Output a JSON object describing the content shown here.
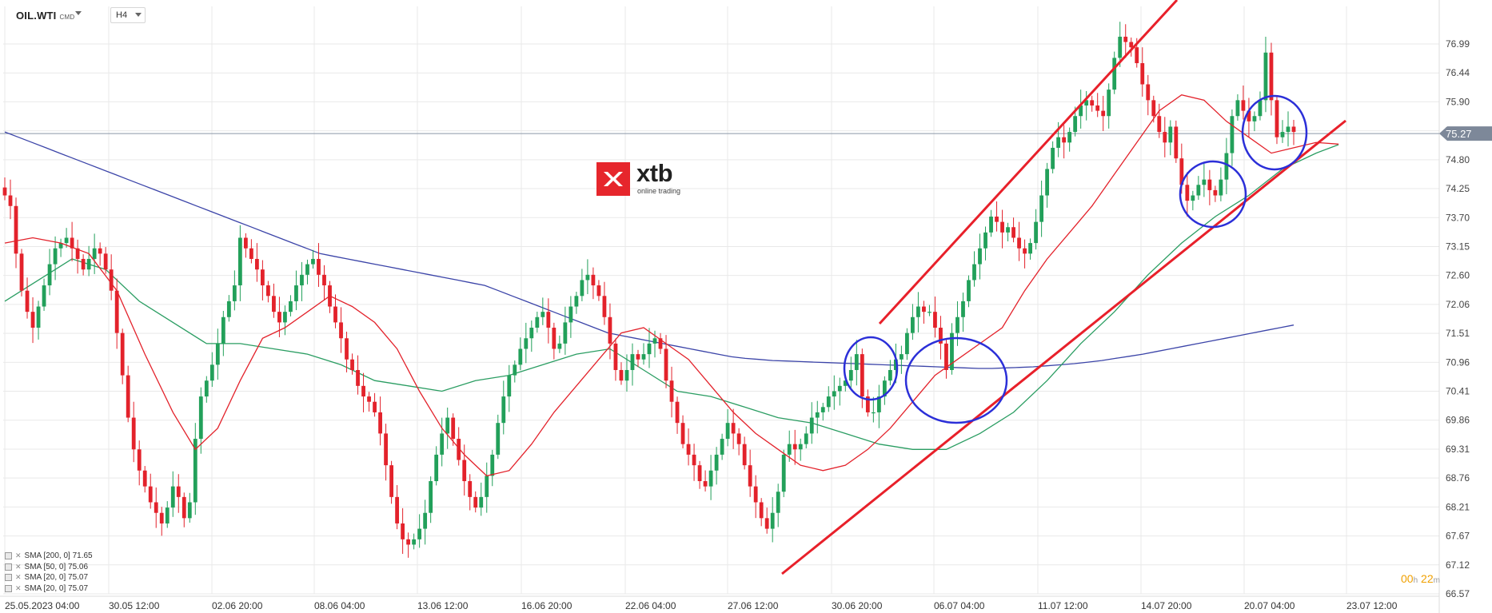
{
  "header": {
    "symbol": "OIL.WTI",
    "symbol_sub": "CMD",
    "timeframe": "H4"
  },
  "logo": {
    "word": "xtb",
    "tagline": "online trading",
    "brand_color": "#e6262c"
  },
  "legend": [
    {
      "label": "SMA [200, 0] 71.65",
      "color": "#3b44a8"
    },
    {
      "label": "SMA [50, 0] 75.06",
      "color": "#2a9d62"
    },
    {
      "label": "SMA [20, 0] 75.07",
      "color": "#e3222b"
    },
    {
      "label": "SMA [20, 0] 75.07",
      "color": "#e3222b"
    }
  ],
  "countdown": {
    "h": "00",
    "h_unit": "h",
    "m": "22",
    "m_unit": "m"
  },
  "price_tag": "75.27",
  "colors": {
    "bull": "#22a05a",
    "bear": "#e3222b",
    "sma200": "#3b44a8",
    "sma50": "#2a9d62",
    "sma20": "#e3222b",
    "annotation_line": "#e8202a",
    "annotation_circle": "#2b2fd8",
    "grid": "#e9e9e9"
  },
  "chart_data": {
    "type": "candlestick",
    "title": "",
    "xlabel": "",
    "ylabel": "",
    "ylim": [
      66.57,
      77.6
    ],
    "grid": true,
    "y_ticks": [
      "76.99",
      "76.44",
      "75.90",
      "75.35",
      "74.80",
      "74.25",
      "73.70",
      "73.15",
      "72.60",
      "72.06",
      "71.51",
      "70.96",
      "70.41",
      "69.86",
      "69.31",
      "68.76",
      "68.21",
      "67.67",
      "67.12",
      "66.57"
    ],
    "x_ticks": [
      "25.05.2023  04:00",
      "30.05  12:00",
      "02.06  20:00",
      "08.06  04:00",
      "13.06  12:00",
      "16.06  20:00",
      "22.06  04:00",
      "27.06  12:00",
      "30.06  20:00",
      "06.07  04:00",
      "11.07  12:00",
      "14.07  20:00",
      "20.07  04:00",
      "23.07  12:00"
    ],
    "last_price": 75.27,
    "closes": [
      74.1,
      73.9,
      73.0,
      72.3,
      71.9,
      71.6,
      72.0,
      72.4,
      72.8,
      73.1,
      73.2,
      73.3,
      73.1,
      72.9,
      72.7,
      72.9,
      73.1,
      73.0,
      72.7,
      72.3,
      71.5,
      70.7,
      69.9,
      69.3,
      68.9,
      68.6,
      68.3,
      68.1,
      67.9,
      68.2,
      68.6,
      68.4,
      68.0,
      68.3,
      69.5,
      70.3,
      70.6,
      70.9,
      71.3,
      71.8,
      72.1,
      72.4,
      73.3,
      73.1,
      72.9,
      72.7,
      72.4,
      72.2,
      71.9,
      71.7,
      71.9,
      72.1,
      72.4,
      72.6,
      72.8,
      72.9,
      72.6,
      72.4,
      72.0,
      71.7,
      71.4,
      71.0,
      70.8,
      70.5,
      70.3,
      70.2,
      70.0,
      69.6,
      69.0,
      68.4,
      67.9,
      67.6,
      67.5,
      67.6,
      67.8,
      68.1,
      68.7,
      69.2,
      69.6,
      69.9,
      69.5,
      69.1,
      68.7,
      68.4,
      68.2,
      68.4,
      68.8,
      69.2,
      69.8,
      70.3,
      70.7,
      70.9,
      71.2,
      71.4,
      71.6,
      71.8,
      71.9,
      71.6,
      71.2,
      71.3,
      71.7,
      72.0,
      72.2,
      72.5,
      72.6,
      72.4,
      72.2,
      71.8,
      71.3,
      70.8,
      70.6,
      70.8,
      71.1,
      71.0,
      71.1,
      71.3,
      71.4,
      71.2,
      70.6,
      70.2,
      69.8,
      69.4,
      69.2,
      69.0,
      68.7,
      68.6,
      68.9,
      69.2,
      69.5,
      69.8,
      69.6,
      69.4,
      69.0,
      68.6,
      68.3,
      68.0,
      67.8,
      68.1,
      68.5,
      69.2,
      69.4,
      69.3,
      69.4,
      69.6,
      69.9,
      70.0,
      70.1,
      70.3,
      70.4,
      70.5,
      70.6,
      70.8,
      71.1,
      70.3,
      70.0,
      70.0,
      70.3,
      70.6,
      70.8,
      71.0,
      71.1,
      71.5,
      71.8,
      72.0,
      71.9,
      71.9,
      71.6,
      71.3,
      70.8,
      71.5,
      71.8,
      72.1,
      72.5,
      72.8,
      73.1,
      73.4,
      73.7,
      73.6,
      73.4,
      73.5,
      73.3,
      73.1,
      73.0,
      73.2,
      73.6,
      74.1,
      74.6,
      75.0,
      75.2,
      75.1,
      75.3,
      75.6,
      75.8,
      75.9,
      75.8,
      75.7,
      75.6,
      76.1,
      76.7,
      77.1,
      77.0,
      76.9,
      76.6,
      76.2,
      75.9,
      75.6,
      75.3,
      75.1,
      75.4,
      74.8,
      74.3,
      74.0,
      74.1,
      74.3,
      74.4,
      74.2,
      74.1,
      74.4,
      74.9,
      75.6,
      75.9,
      75.7,
      75.5,
      75.6,
      75.9,
      76.8,
      75.9,
      75.2,
      75.3,
      75.4,
      75.3
    ],
    "sma200": [
      75.3,
      75.2,
      75.1,
      75.0,
      74.9,
      74.8,
      74.7,
      74.6,
      74.5,
      74.4,
      74.3,
      74.2,
      74.1,
      74.0,
      73.9,
      73.8,
      73.7,
      73.6,
      73.5,
      73.4,
      73.3,
      73.2,
      73.1,
      73.0,
      72.95,
      72.9,
      72.85,
      72.8,
      72.75,
      72.7,
      72.65,
      72.6,
      72.55,
      72.5,
      72.45,
      72.4,
      72.3,
      72.2,
      72.1,
      72.0,
      71.9,
      71.8,
      71.7,
      71.6,
      71.5,
      71.45,
      71.4,
      71.35,
      71.3,
      71.25,
      71.2,
      71.15,
      71.1,
      71.05,
      71.02,
      71.0,
      70.98,
      70.97,
      70.96,
      70.95,
      70.94,
      70.93,
      70.92,
      70.91,
      70.9,
      70.89,
      70.88,
      70.87,
      70.86,
      70.85,
      70.84,
      70.83,
      70.83,
      70.84,
      70.85,
      70.86,
      70.88,
      70.9,
      70.92,
      70.95,
      70.98,
      71.02,
      71.06,
      71.1,
      71.15,
      71.2,
      71.25,
      71.3,
      71.35,
      71.4,
      71.45,
      71.5,
      71.55,
      71.6,
      71.65
    ],
    "sma50_pts": [
      [
        0,
        72.1
      ],
      [
        6,
        72.5
      ],
      [
        12,
        72.9
      ],
      [
        18,
        72.7
      ],
      [
        24,
        72.1
      ],
      [
        30,
        71.7
      ],
      [
        36,
        71.3
      ],
      [
        42,
        71.3
      ],
      [
        48,
        71.2
      ],
      [
        54,
        71.1
      ],
      [
        60,
        70.9
      ],
      [
        66,
        70.6
      ],
      [
        72,
        70.5
      ],
      [
        78,
        70.4
      ],
      [
        84,
        70.6
      ],
      [
        90,
        70.7
      ],
      [
        96,
        70.9
      ],
      [
        102,
        71.1
      ],
      [
        108,
        71.2
      ],
      [
        114,
        70.8
      ],
      [
        120,
        70.4
      ],
      [
        126,
        70.3
      ],
      [
        132,
        70.1
      ],
      [
        138,
        69.9
      ],
      [
        144,
        69.8
      ],
      [
        150,
        69.6
      ],
      [
        156,
        69.4
      ],
      [
        162,
        69.3
      ],
      [
        168,
        69.3
      ],
      [
        174,
        69.6
      ],
      [
        180,
        70.0
      ],
      [
        186,
        70.6
      ],
      [
        192,
        71.3
      ],
      [
        198,
        71.9
      ],
      [
        204,
        72.6
      ],
      [
        210,
        73.2
      ],
      [
        216,
        73.7
      ],
      [
        222,
        74.1
      ],
      [
        228,
        74.6
      ],
      [
        234,
        74.9
      ],
      [
        238,
        75.06
      ]
    ],
    "sma20_pts": [
      [
        0,
        73.2
      ],
      [
        5,
        73.3
      ],
      [
        10,
        73.2
      ],
      [
        15,
        73.0
      ],
      [
        20,
        72.3
      ],
      [
        25,
        71.1
      ],
      [
        30,
        70.0
      ],
      [
        34,
        69.3
      ],
      [
        38,
        69.7
      ],
      [
        42,
        70.6
      ],
      [
        46,
        71.4
      ],
      [
        50,
        71.6
      ],
      [
        54,
        71.9
      ],
      [
        58,
        72.2
      ],
      [
        62,
        72.0
      ],
      [
        66,
        71.7
      ],
      [
        70,
        71.2
      ],
      [
        74,
        70.4
      ],
      [
        78,
        69.7
      ],
      [
        82,
        69.2
      ],
      [
        86,
        68.8
      ],
      [
        90,
        68.9
      ],
      [
        94,
        69.4
      ],
      [
        98,
        70.0
      ],
      [
        102,
        70.5
      ],
      [
        106,
        71.0
      ],
      [
        110,
        71.5
      ],
      [
        114,
        71.6
      ],
      [
        118,
        71.3
      ],
      [
        122,
        71.0
      ],
      [
        126,
        70.5
      ],
      [
        130,
        70.0
      ],
      [
        134,
        69.6
      ],
      [
        138,
        69.3
      ],
      [
        142,
        69.0
      ],
      [
        146,
        68.9
      ],
      [
        150,
        69.0
      ],
      [
        154,
        69.3
      ],
      [
        158,
        69.7
      ],
      [
        162,
        70.2
      ],
      [
        166,
        70.7
      ],
      [
        170,
        71.0
      ],
      [
        174,
        71.3
      ],
      [
        178,
        71.6
      ],
      [
        182,
        72.3
      ],
      [
        186,
        72.9
      ],
      [
        190,
        73.4
      ],
      [
        194,
        73.9
      ],
      [
        198,
        74.5
      ],
      [
        202,
        75.1
      ],
      [
        206,
        75.7
      ],
      [
        210,
        76.0
      ],
      [
        214,
        75.9
      ],
      [
        218,
        75.5
      ],
      [
        222,
        75.2
      ],
      [
        226,
        74.9
      ],
      [
        230,
        75.0
      ],
      [
        234,
        75.1
      ],
      [
        238,
        75.07
      ]
    ]
  }
}
